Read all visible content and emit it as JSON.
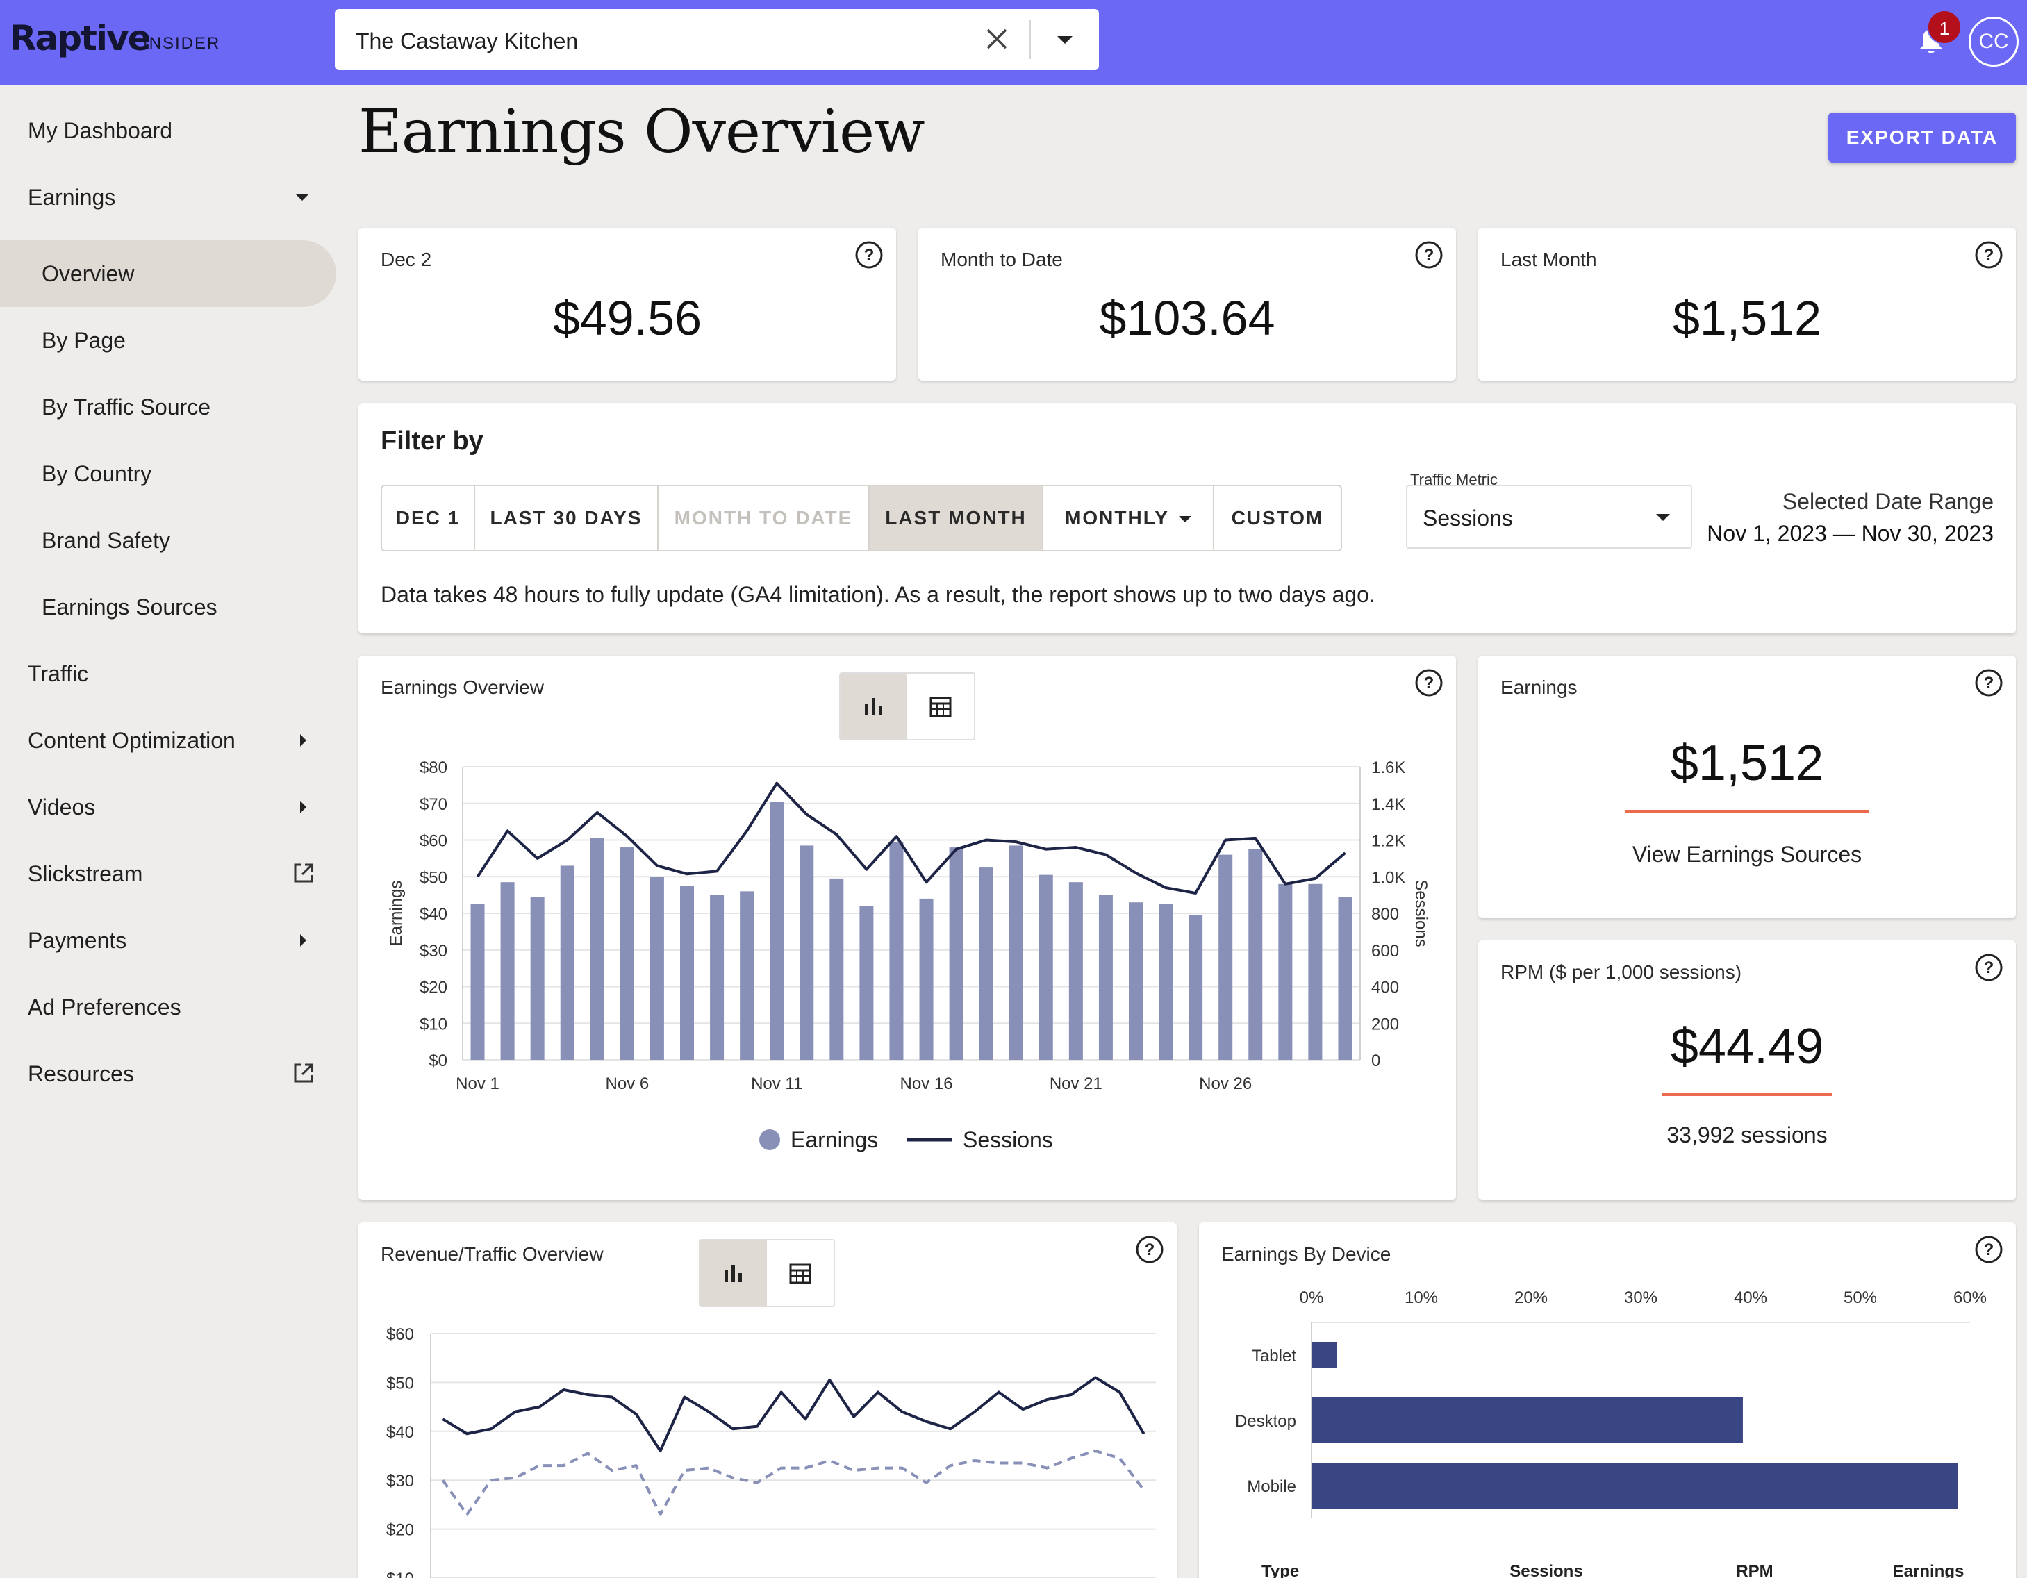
{
  "header": {
    "logo": "Raptive",
    "logo_sub": "INSIDER",
    "site_name": "The Castaway Kitchen",
    "notification_count": "1",
    "avatar_initials": "CC"
  },
  "sidebar": {
    "items": [
      {
        "label": "My Dashboard"
      },
      {
        "label": "Earnings"
      },
      {
        "label": "Overview"
      },
      {
        "label": "By Page"
      },
      {
        "label": "By Traffic Source"
      },
      {
        "label": "By Country"
      },
      {
        "label": "Brand Safety"
      },
      {
        "label": "Earnings Sources"
      },
      {
        "label": "Traffic"
      },
      {
        "label": "Content Optimization"
      },
      {
        "label": "Videos"
      },
      {
        "label": "Slickstream"
      },
      {
        "label": "Payments"
      },
      {
        "label": "Ad Preferences"
      },
      {
        "label": "Resources"
      }
    ]
  },
  "page": {
    "title": "Earnings Overview",
    "export_label": "EXPORT DATA"
  },
  "stats": [
    {
      "label": "Dec 2",
      "value": "$49.56"
    },
    {
      "label": "Month to Date",
      "value": "$103.64"
    },
    {
      "label": "Last Month",
      "value": "$1,512"
    }
  ],
  "filter": {
    "title": "Filter by",
    "buttons": [
      "DEC 1",
      "LAST 30 DAYS",
      "MONTH TO DATE",
      "LAST MONTH",
      "MONTHLY",
      "CUSTOM"
    ],
    "selected": "LAST MONTH",
    "disabled": "MONTH TO DATE",
    "traffic_metric_label": "Traffic Metric",
    "traffic_metric_value": "Sessions",
    "range_label": "Selected Date Range",
    "range_value": "Nov 1, 2023 — Nov 30, 2023",
    "note": "Data takes 48 hours to fully update (GA4 limitation). As a result, the report shows up to two days ago."
  },
  "earnings_card": {
    "title": "Earnings",
    "value": "$1,512",
    "link": "View Earnings Sources"
  },
  "rpm_card": {
    "title": "RPM ($ per 1,000 sessions)",
    "value": "$44.49",
    "sessions": "33,992 sessions"
  },
  "colors": {
    "accent": "#6b68f5",
    "bar": "#8890b8",
    "line": "#1d2446",
    "device_bar": "#3a4684",
    "underline": "#ee6a4d"
  },
  "chart_data": [
    {
      "type": "bar",
      "title": "Earnings Overview",
      "ylabel": "Earnings",
      "y2label": "Sessions",
      "ylim": [
        0,
        80
      ],
      "y2lim": [
        0,
        1600
      ],
      "yticks": [
        "$0",
        "$10",
        "$20",
        "$30",
        "$40",
        "$50",
        "$60",
        "$70",
        "$80"
      ],
      "y2ticks": [
        "0",
        "200",
        "400",
        "600",
        "800",
        "1.0K",
        "1.2K",
        "1.4K",
        "1.6K"
      ],
      "xticks": [
        {
          "index": 0,
          "label": "Nov 1"
        },
        {
          "index": 5,
          "label": "Nov 6"
        },
        {
          "index": 10,
          "label": "Nov 11"
        },
        {
          "index": 15,
          "label": "Nov 16"
        },
        {
          "index": 20,
          "label": "Nov 21"
        },
        {
          "index": 25,
          "label": "Nov 26"
        }
      ],
      "categories": [
        "Nov 1",
        "Nov 2",
        "Nov 3",
        "Nov 4",
        "Nov 5",
        "Nov 6",
        "Nov 7",
        "Nov 8",
        "Nov 9",
        "Nov 10",
        "Nov 11",
        "Nov 12",
        "Nov 13",
        "Nov 14",
        "Nov 15",
        "Nov 16",
        "Nov 17",
        "Nov 18",
        "Nov 19",
        "Nov 20",
        "Nov 21",
        "Nov 22",
        "Nov 23",
        "Nov 24",
        "Nov 25",
        "Nov 26",
        "Nov 27",
        "Nov 28",
        "Nov 29",
        "Nov 30"
      ],
      "series": [
        {
          "name": "Earnings",
          "kind": "bar",
          "values": [
            42.5,
            48.5,
            44.5,
            53,
            60.5,
            58,
            50,
            47.5,
            45,
            46,
            70.5,
            58.5,
            49.5,
            42,
            59.5,
            44,
            58,
            52.5,
            58.5,
            50.5,
            48.5,
            45,
            43,
            42.5,
            39.5,
            56,
            57.5,
            48,
            48,
            44.5
          ]
        },
        {
          "name": "Sessions",
          "kind": "line",
          "values": [
            1000,
            1250,
            1100,
            1200,
            1350,
            1220,
            1060,
            1015,
            1030,
            1250,
            1510,
            1340,
            1230,
            1040,
            1220,
            970,
            1150,
            1200,
            1190,
            1150,
            1160,
            1120,
            1020,
            940,
            910,
            1200,
            1210,
            960,
            990,
            1130
          ]
        }
      ],
      "legend": "bottom"
    },
    {
      "type": "line",
      "title": "Revenue/Traffic Overview",
      "ylim": [
        10,
        60
      ],
      "yticks": [
        "$10",
        "$20",
        "$30",
        "$40",
        "$50",
        "$60"
      ],
      "series": [
        {
          "name": "",
          "style": "solid",
          "values": [
            42.5,
            39.5,
            40.5,
            44,
            45,
            48.5,
            47.5,
            47,
            43.5,
            36,
            47,
            44,
            40.5,
            41,
            48,
            42.5,
            50.5,
            43,
            48,
            44,
            42,
            40.5,
            44,
            48,
            44.5,
            46.5,
            47.5,
            51,
            48,
            39.5
          ]
        },
        {
          "name": "",
          "style": "dashed",
          "values": [
            30,
            23,
            30,
            30.5,
            33,
            33,
            35.5,
            32,
            33,
            23,
            32,
            32.5,
            30.5,
            29.5,
            32.5,
            32.5,
            34,
            32,
            32.5,
            32.5,
            29.5,
            33,
            34,
            33.5,
            33.5,
            32.5,
            34.5,
            36,
            34.5,
            28
          ]
        }
      ]
    },
    {
      "type": "bar",
      "orientation": "horizontal",
      "title": "Earnings By Device",
      "xlim": [
        0,
        60
      ],
      "xticks": [
        "0%",
        "10%",
        "20%",
        "30%",
        "40%",
        "50%",
        "60%"
      ],
      "categories": [
        "Tablet",
        "Desktop",
        "Mobile"
      ],
      "values": [
        2.3,
        39.3,
        58.9
      ]
    }
  ],
  "device_table_headers": [
    "Type",
    "Sessions",
    "RPM",
    "Earnings"
  ]
}
